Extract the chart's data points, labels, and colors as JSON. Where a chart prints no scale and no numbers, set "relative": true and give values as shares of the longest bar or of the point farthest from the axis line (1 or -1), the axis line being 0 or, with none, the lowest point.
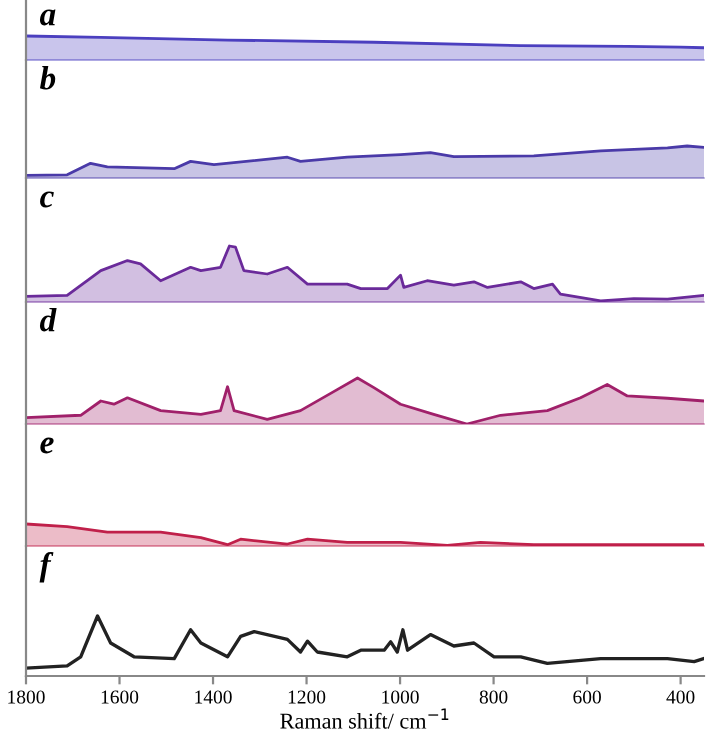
{
  "chart_data": [
    {
      "type": "area",
      "title": "a",
      "relative": true,
      "xlim": [
        1800,
        350
      ],
      "tick_labels": false,
      "x": [
        1800,
        1640,
        1369,
        1056,
        742,
        514,
        400,
        350
      ],
      "series": [
        {
          "color": "#4b3fbf",
          "values": [
            1,
            0.94,
            0.83,
            0.74,
            0.6,
            0.57,
            0.54,
            0.51
          ]
        }
      ]
    },
    {
      "type": "area",
      "title": "b",
      "relative": true,
      "xlim": [
        1800,
        350
      ],
      "tick_labels": false,
      "x": [
        1800,
        1712,
        1662,
        1626,
        1483,
        1448,
        1398,
        1241,
        1213,
        1113,
        999,
        935,
        885,
        714,
        571,
        428,
        386,
        350
      ],
      "series": [
        {
          "color": "#4a3aa8",
          "values": [
            0.08,
            0.1,
            0.46,
            0.35,
            0.29,
            0.52,
            0.42,
            0.65,
            0.52,
            0.65,
            0.73,
            0.79,
            0.67,
            0.69,
            0.85,
            0.94,
            1,
            0.96
          ]
        }
      ]
    },
    {
      "type": "area",
      "title": "c",
      "relative": true,
      "xlim": [
        1800,
        350
      ],
      "tick_labels": false,
      "x": [
        1800,
        1712,
        1640,
        1583,
        1555,
        1512,
        1448,
        1426,
        1384,
        1365,
        1352,
        1334,
        1284,
        1241,
        1198,
        1113,
        1084,
        1027,
        999,
        992,
        942,
        885,
        842,
        813,
        742,
        714,
        674,
        657,
        571,
        500,
        428,
        350
      ],
      "series": [
        {
          "color": "#6a2a9a",
          "values": [
            0.1,
            0.12,
            0.56,
            0.74,
            0.68,
            0.38,
            0.62,
            0.56,
            0.62,
            1,
            0.98,
            0.56,
            0.5,
            0.62,
            0.32,
            0.32,
            0.24,
            0.24,
            0.48,
            0.26,
            0.38,
            0.3,
            0.36,
            0.26,
            0.36,
            0.24,
            0.32,
            0.14,
            0.02,
            0.06,
            0.05,
            0.12
          ]
        }
      ]
    },
    {
      "type": "area",
      "title": "d",
      "relative": true,
      "xlim": [
        1800,
        350
      ],
      "tick_labels": false,
      "x": [
        1800,
        1683,
        1640,
        1612,
        1583,
        1512,
        1426,
        1384,
        1369,
        1355,
        1284,
        1213,
        1141,
        1091,
        1056,
        999,
        928,
        857,
        785,
        685,
        614,
        557,
        514,
        428,
        350
      ],
      "series": [
        {
          "color": "#a0206a",
          "values": [
            0.14,
            0.19,
            0.5,
            0.43,
            0.57,
            0.29,
            0.21,
            0.29,
            0.81,
            0.29,
            0.1,
            0.29,
            0.71,
            1,
            0.79,
            0.43,
            0.21,
            0,
            0.19,
            0.29,
            0.57,
            0.86,
            0.61,
            0.56,
            0.5
          ]
        }
      ]
    },
    {
      "type": "area",
      "title": "e",
      "relative": true,
      "xlim": [
        1800,
        350
      ],
      "tick_labels": false,
      "x": [
        1800,
        1712,
        1626,
        1512,
        1426,
        1369,
        1341,
        1241,
        1198,
        1113,
        999,
        899,
        828,
        714,
        571,
        428,
        350
      ],
      "series": [
        {
          "color": "#c0204a",
          "values": [
            1,
            0.88,
            0.63,
            0.63,
            0.38,
            0.06,
            0.31,
            0.09,
            0.31,
            0.16,
            0.16,
            0.03,
            0.16,
            0.06,
            0.06,
            0.06,
            0.06
          ]
        }
      ]
    },
    {
      "type": "line",
      "title": "f",
      "relative": true,
      "xlim": [
        1800,
        350
      ],
      "tick_labels": "x",
      "xticks": [
        1800,
        1600,
        1400,
        1200,
        1000,
        800,
        600,
        400
      ],
      "xlabel": "Raman shift/ cm$^{−1}$",
      "x": [
        1800,
        1712,
        1683,
        1647,
        1619,
        1569,
        1483,
        1448,
        1426,
        1369,
        1341,
        1312,
        1241,
        1213,
        1198,
        1177,
        1113,
        1084,
        1034,
        1020,
        1006,
        994,
        984,
        935,
        885,
        842,
        799,
        742,
        685,
        571,
        428,
        371,
        350
      ],
      "series": [
        {
          "color": "#222222",
          "values": [
            0.13,
            0.17,
            0.32,
            1,
            0.55,
            0.32,
            0.29,
            0.77,
            0.55,
            0.32,
            0.66,
            0.74,
            0.61,
            0.4,
            0.58,
            0.4,
            0.32,
            0.43,
            0.43,
            0.57,
            0.4,
            0.77,
            0.43,
            0.69,
            0.5,
            0.55,
            0.32,
            0.32,
            0.21,
            0.29,
            0.29,
            0.24,
            0.29
          ]
        }
      ]
    }
  ]
}
